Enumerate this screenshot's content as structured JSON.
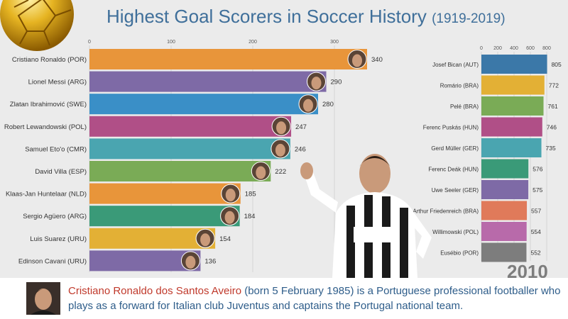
{
  "header": {
    "title": "Highest Goal Scorers in Soccer History",
    "subtitle": "(1919-2019)"
  },
  "year": "2010",
  "caption": {
    "name": "Cristiano Ronaldo dos Santos Aveiro",
    "text": "(born 5 February 1985) is a Portuguese professional footballer who plays as a forward for Italian club Juventus and captains the Portugal national team."
  },
  "chart_data": [
    {
      "type": "bar",
      "orientation": "horizontal",
      "categories": [
        "Cristiano Ronaldo (POR)",
        "Lionel Messi (ARG)",
        "Zlatan Ibrahimović (SWE)",
        "Robert Lewandowski (POL)",
        "Samuel Eto'o (CMR)",
        "David Villa (ESP)",
        "Klaas-Jan Huntelaar (NLD)",
        "Sergio Agüero (ARG)",
        "Luis Suarez (URU)",
        "Edinson Cavani (URU)"
      ],
      "values": [
        340,
        290,
        280,
        247,
        246,
        222,
        185,
        184,
        154,
        136
      ],
      "colors": [
        "#e8953a",
        "#7e6aa6",
        "#3a8fc7",
        "#b04f87",
        "#4aa5b0",
        "#7aab56",
        "#e8953a",
        "#3a9a78",
        "#e3b035",
        "#7e6aa6"
      ],
      "xticks": [
        0,
        100,
        200,
        300
      ],
      "xlim": [
        0,
        340
      ],
      "grid": true
    },
    {
      "type": "bar",
      "orientation": "horizontal",
      "categories": [
        "Josef Bican (AUT)",
        "Romário (BRA)",
        "Pelé (BRA)",
        "Ferenc Puskás (HUN)",
        "Gerd Müller (GER)",
        "Ferenc Deák (HUN)",
        "Uwe Seeler (GER)",
        "Arthur Friedenreich (BRA)",
        "Willimowski (POL)",
        "Eusébio (POR)"
      ],
      "values": [
        805,
        772,
        761,
        746,
        735,
        576,
        575,
        557,
        554,
        552
      ],
      "colors": [
        "#3b78a8",
        "#e3b035",
        "#7aab56",
        "#b04f87",
        "#4aa5b0",
        "#3a9a78",
        "#7e6aa6",
        "#e07a5a",
        "#b86aaa",
        "#7d7d7d"
      ],
      "xticks": [
        0,
        200,
        400,
        600,
        800
      ],
      "xlim": [
        0,
        805
      ],
      "grid": true
    }
  ]
}
